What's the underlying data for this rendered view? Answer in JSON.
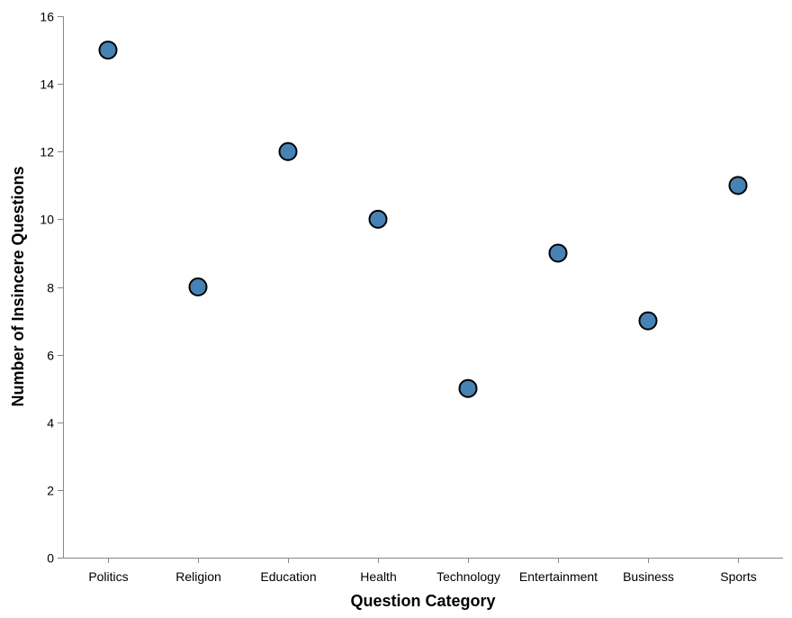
{
  "chart_data": {
    "type": "scatter",
    "xlabel": "Question Category",
    "ylabel": "Number of Insincere Questions",
    "categories": [
      "Politics",
      "Religion",
      "Education",
      "Health",
      "Technology",
      "Entertainment",
      "Business",
      "Sports"
    ],
    "values": [
      15,
      8,
      12,
      10,
      5,
      9,
      7,
      11
    ],
    "ylim": [
      0,
      16
    ],
    "y_ticks": [
      "0",
      "2",
      "4",
      "6",
      "8",
      "10",
      "12",
      "14",
      "16"
    ],
    "grid": false,
    "point_color": "#4682b4",
    "point_stroke": "#000000"
  }
}
